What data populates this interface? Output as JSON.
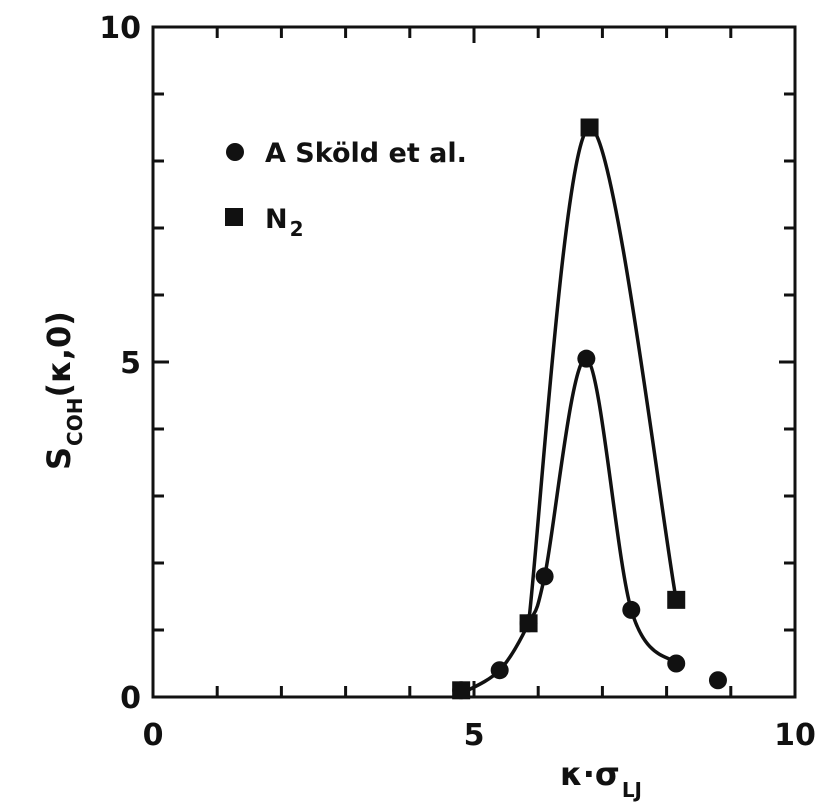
{
  "chart_data": {
    "type": "line",
    "title": "",
    "xlabel": {
      "main": "κ·σ",
      "subscript": "LJ"
    },
    "ylabel": {
      "main": "S",
      "subscript": "COH",
      "suffix": "(κ,0)"
    },
    "xlim": [
      0,
      10
    ],
    "ylim": [
      0,
      10
    ],
    "xticks": [
      0,
      5,
      10
    ],
    "yticks": [
      0,
      5,
      10
    ],
    "grid": false,
    "legend_position": "top-left",
    "series": [
      {
        "name": "A Sköld et al.",
        "legend_label": {
          "main": "A  Sköld et al.",
          "subscript": ""
        },
        "marker": "circle",
        "color": "#111111",
        "points": [
          [
            4.8,
            0.1
          ],
          [
            5.4,
            0.4
          ],
          [
            5.85,
            1.1
          ],
          [
            6.1,
            1.8
          ],
          [
            6.75,
            5.05
          ],
          [
            7.45,
            1.3
          ],
          [
            8.15,
            0.5
          ],
          [
            8.8,
            0.25
          ]
        ],
        "curve": [
          [
            4.8,
            0.05
          ],
          [
            5.4,
            0.4
          ],
          [
            5.85,
            1.1
          ],
          [
            6.1,
            1.8
          ],
          [
            6.75,
            5.05
          ],
          [
            7.45,
            1.3
          ],
          [
            8.15,
            0.5
          ]
        ]
      },
      {
        "name": "N2",
        "legend_label": {
          "main": "N",
          "subscript": "2"
        },
        "marker": "square",
        "color": "#111111",
        "points": [
          [
            4.8,
            0.1
          ],
          [
            5.85,
            1.1
          ],
          [
            6.8,
            8.5
          ],
          [
            8.15,
            1.45
          ]
        ],
        "curve": [
          [
            5.85,
            1.1
          ],
          [
            6.8,
            8.5
          ],
          [
            8.15,
            1.45
          ]
        ]
      }
    ]
  }
}
